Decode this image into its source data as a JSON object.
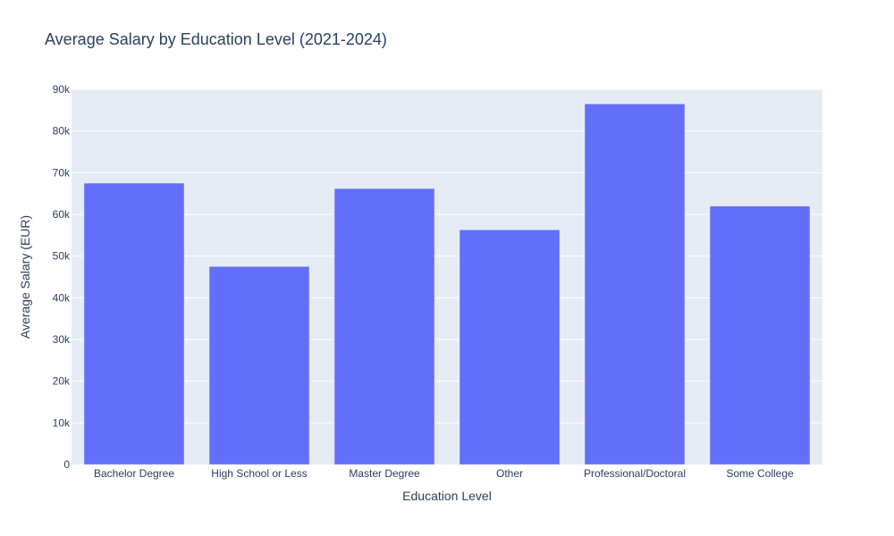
{
  "chart_data": {
    "type": "bar",
    "title": "Average Salary by Education Level (2021-2024)",
    "xlabel": "Education Level",
    "ylabel": "Average Salary (EUR)",
    "categories": [
      "Bachelor Degree",
      "High School or Less",
      "Master Degree",
      "Other",
      "Professional/Doctoral",
      "Some College"
    ],
    "values": [
      67500,
      47500,
      66200,
      56300,
      86500,
      62000
    ],
    "ylim": [
      0,
      90000
    ],
    "yticks": [
      0,
      10000,
      20000,
      30000,
      40000,
      50000,
      60000,
      70000,
      80000,
      90000
    ],
    "ytick_labels": [
      "0",
      "10k",
      "20k",
      "30k",
      "40k",
      "50k",
      "60k",
      "70k",
      "80k",
      "90k"
    ],
    "grid": true,
    "colors": {
      "bar": "#636efa",
      "plot_background": "#e5ecf6",
      "grid": "#ffffff",
      "text": "#2a3f5f"
    }
  }
}
